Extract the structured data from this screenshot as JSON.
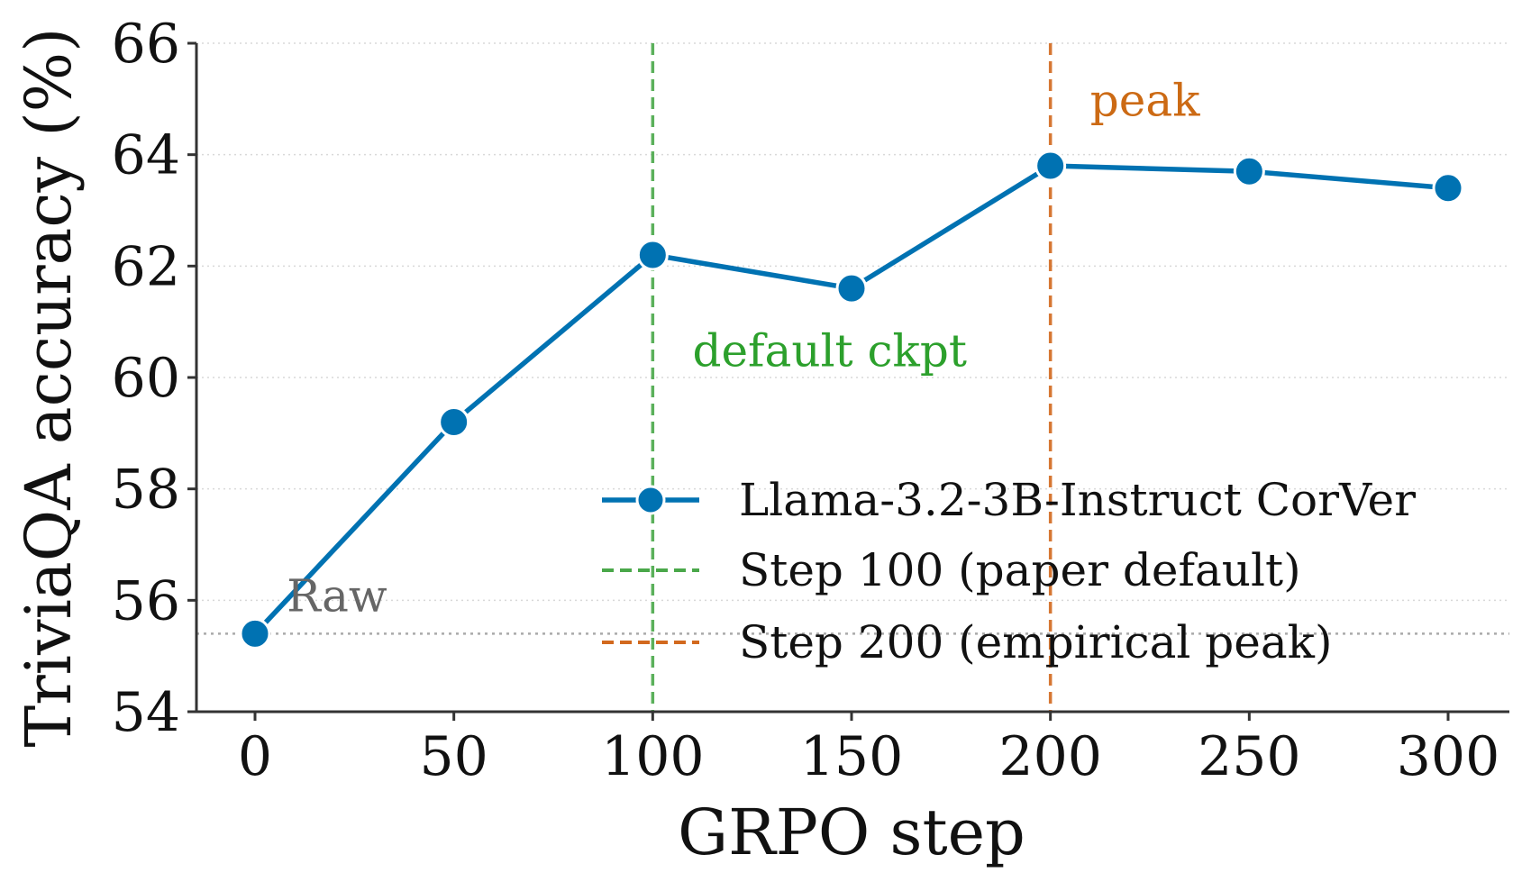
{
  "chart_data": {
    "type": "line",
    "title": "",
    "xlabel": "GRPO step",
    "ylabel": "TriviaQA accuracy (%)",
    "xlim": [
      -15,
      315
    ],
    "ylim": [
      54,
      66
    ],
    "xticks": [
      "0",
      "50",
      "100",
      "150",
      "200",
      "250",
      "300"
    ],
    "xtick_values": [
      0,
      50,
      100,
      150,
      200,
      250,
      300
    ],
    "yticks": [
      "54",
      "56",
      "58",
      "60",
      "62",
      "64",
      "66"
    ],
    "ytick_values": [
      54,
      56,
      58,
      60,
      62,
      64,
      66
    ],
    "grid": "horizontal dotted",
    "legend_position": "lower-right",
    "series": [
      {
        "name": "Llama-3.2-3B-Instruct CorVer",
        "color": "#0072b2",
        "x": [
          0,
          50,
          100,
          150,
          200,
          250,
          300
        ],
        "y": [
          55.4,
          59.2,
          62.2,
          61.6,
          63.8,
          63.7,
          63.4
        ]
      }
    ],
    "reference_lines": [
      {
        "name": "Step 100 (paper default)",
        "orientation": "vertical",
        "x": 100,
        "color": "#4aa84a",
        "style": "dashed"
      },
      {
        "name": "Step 200 (empirical peak)",
        "orientation": "vertical",
        "x": 200,
        "color": "#d2691e",
        "style": "dashed"
      },
      {
        "name": "",
        "orientation": "horizontal",
        "y": 55.4,
        "color": "#aaaaaa",
        "style": "dotted"
      }
    ],
    "annotations": [
      {
        "text": "Raw",
        "x": 8,
        "y": 55.8,
        "color": "#666666"
      },
      {
        "text": "default ckpt",
        "x": 110,
        "y": 60.2,
        "color": "#2ca02c"
      },
      {
        "text": "peak",
        "x": 210,
        "y": 64.7,
        "color": "#cc6a14"
      }
    ]
  }
}
